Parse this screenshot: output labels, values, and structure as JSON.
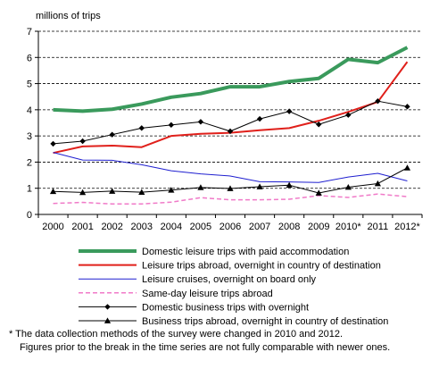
{
  "chart_data": {
    "type": "line",
    "ylabel": "millions of trips",
    "ylim": [
      0,
      7
    ],
    "yticks": [
      "0",
      "1",
      "2",
      "3",
      "4",
      "5",
      "6",
      "7"
    ],
    "grid": "horizontal dashed",
    "legend_position": "bottom",
    "categories": [
      "2000",
      "2001",
      "2002",
      "2003",
      "2004",
      "2005",
      "2006",
      "2007",
      "2008",
      "2009",
      "2010*",
      "2011",
      "2012*"
    ],
    "series": [
      {
        "name": "Domestic leisure trips with paid accommodation",
        "color": "#3a9a5c",
        "style": "solid-thick",
        "marker": "none",
        "values": [
          4.0,
          3.95,
          4.02,
          4.22,
          4.48,
          4.62,
          4.88,
          4.88,
          5.08,
          5.2,
          5.93,
          5.8,
          6.38
        ]
      },
      {
        "name": "Leisure trips abroad, overnight in country of destination",
        "color": "#e0201b",
        "style": "solid",
        "marker": "none",
        "values": [
          2.35,
          2.6,
          2.63,
          2.57,
          3.0,
          3.08,
          3.12,
          3.22,
          3.3,
          3.58,
          3.92,
          4.3,
          5.83
        ]
      },
      {
        "name": "Leisure cruises, overnight on board only",
        "color": "#1f1fd0",
        "style": "solid-thin",
        "marker": "none",
        "values": [
          2.37,
          2.08,
          2.07,
          1.9,
          1.67,
          1.55,
          1.47,
          1.25,
          1.24,
          1.22,
          1.43,
          1.57,
          1.28
        ]
      },
      {
        "name": "Same-day leisure trips abroad",
        "color": "#f07ac8",
        "style": "dashed",
        "marker": "none",
        "values": [
          0.42,
          0.46,
          0.4,
          0.4,
          0.47,
          0.64,
          0.56,
          0.56,
          0.58,
          0.72,
          0.65,
          0.78,
          0.68
        ]
      },
      {
        "name": "Domestic business trips with overnight",
        "color": "#000000",
        "style": "solid-thin",
        "marker": "diamond",
        "values": [
          2.7,
          2.8,
          3.05,
          3.3,
          3.42,
          3.54,
          3.18,
          3.65,
          3.94,
          3.44,
          3.8,
          4.33,
          4.12
        ]
      },
      {
        "name": "Business trips abroad, overnight in country of destination",
        "color": "#000000",
        "style": "solid-thin",
        "marker": "triangle",
        "values": [
          0.88,
          0.84,
          0.89,
          0.85,
          0.93,
          1.03,
          0.99,
          1.06,
          1.12,
          0.82,
          1.04,
          1.18,
          1.78
        ]
      }
    ]
  },
  "footnote": {
    "line1": "* The data collection methods of the survey were changed in  2010 and 2012.",
    "line2": "Figures prior to the break in the time series are not fully comparable with newer ones."
  }
}
